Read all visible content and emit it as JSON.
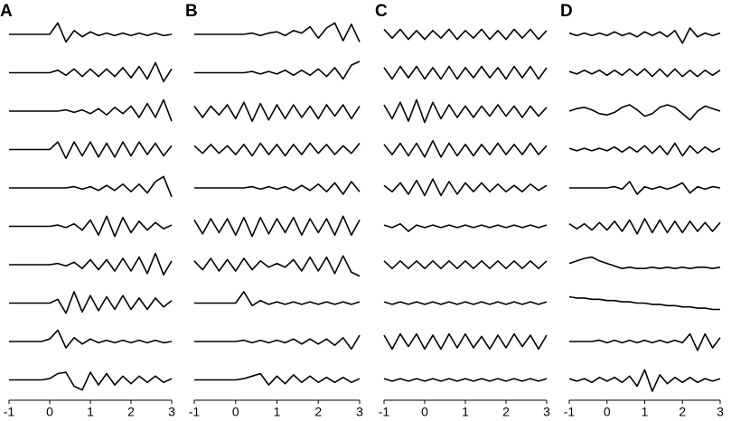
{
  "chart_data": [
    {
      "type": "line",
      "title": "A",
      "x": [
        -1,
        -0.8,
        -0.6,
        -0.4,
        -0.2,
        0,
        0.2,
        0.4,
        0.6,
        0.8,
        1,
        1.2,
        1.4,
        1.6,
        1.8,
        2,
        2.2,
        2.4,
        2.6,
        2.8,
        3
      ],
      "xlim": [
        -1,
        3
      ],
      "xticks": [
        -1,
        0,
        1,
        2,
        3
      ],
      "ylim": [
        -1,
        1
      ],
      "series": [
        {
          "color": "#000000",
          "values": [
            0,
            0,
            0,
            0,
            0,
            0,
            0.9,
            -0.6,
            0.3,
            -0.2,
            0.2,
            -0.1,
            0.1,
            -0.1,
            0.1,
            -0.1,
            0.1,
            -0.1,
            0.1,
            -0.1,
            0
          ]
        },
        {
          "color": "#000000",
          "values": [
            0,
            0,
            0,
            0,
            0,
            0,
            0.2,
            -0.2,
            0.3,
            -0.3,
            0.3,
            -0.3,
            0.3,
            -0.3,
            0.4,
            -0.4,
            0.5,
            -0.5,
            0.8,
            -0.7,
            0.3
          ]
        },
        {
          "color": "#000000",
          "values": [
            0,
            0,
            0,
            0,
            0,
            0,
            0,
            0.1,
            -0.1,
            0.1,
            -0.2,
            0.2,
            -0.3,
            0.3,
            -0.2,
            0.4,
            -0.5,
            0.6,
            -0.5,
            0.9,
            -0.8
          ]
        },
        {
          "color": "#000000",
          "values": [
            0,
            0,
            0,
            0,
            0,
            0,
            0.6,
            -0.7,
            0.6,
            -0.5,
            0.6,
            -0.6,
            0.5,
            -0.6,
            0.6,
            -0.5,
            0.6,
            -0.4,
            0.5,
            -0.5,
            0.3
          ]
        },
        {
          "color": "#000000",
          "values": [
            0,
            0,
            0,
            0,
            0,
            0,
            0,
            0,
            0.1,
            -0.1,
            0.1,
            -0.2,
            0.2,
            -0.2,
            0.3,
            -0.3,
            0.3,
            -0.4,
            0.5,
            0.9,
            -0.7
          ]
        },
        {
          "color": "#000000",
          "values": [
            0,
            0,
            0,
            0,
            0,
            0,
            0.1,
            -0.1,
            0.2,
            -0.3,
            0.5,
            -0.7,
            0.8,
            -0.8,
            0.7,
            -0.5,
            0.4,
            -0.3,
            0.3,
            -0.2,
            0.1
          ]
        },
        {
          "color": "#000000",
          "values": [
            0,
            0,
            0,
            0,
            0,
            0,
            0.1,
            -0.1,
            0.2,
            -0.3,
            0.4,
            -0.4,
            0.4,
            -0.5,
            0.5,
            -0.5,
            0.6,
            -0.7,
            0.9,
            -0.8,
            0.3
          ]
        },
        {
          "color": "#000000",
          "values": [
            0,
            0,
            0,
            0,
            0,
            0,
            0.3,
            -0.8,
            0.9,
            -0.7,
            0.6,
            -0.6,
            0.5,
            -0.5,
            0.6,
            -0.5,
            0.4,
            -0.5,
            0.4,
            -0.3,
            0.2
          ]
        },
        {
          "color": "#000000",
          "values": [
            0,
            0,
            0,
            0,
            0,
            0.2,
            0.9,
            -0.5,
            0.3,
            -0.2,
            0.2,
            -0.1,
            0.1,
            -0.1,
            0.1,
            -0.1,
            0.1,
            -0.1,
            0.1,
            -0.1,
            0
          ]
        },
        {
          "color": "#000000",
          "values": [
            0,
            0,
            0,
            0,
            0,
            0.1,
            0.5,
            0.6,
            -0.5,
            -0.8,
            0.6,
            -0.4,
            0.5,
            -0.4,
            0.3,
            -0.3,
            0.3,
            -0.2,
            0.3,
            -0.2,
            0.1
          ]
        }
      ]
    },
    {
      "type": "line",
      "title": "B",
      "x": [
        -1,
        -0.8,
        -0.6,
        -0.4,
        -0.2,
        0,
        0.2,
        0.4,
        0.6,
        0.8,
        1,
        1.2,
        1.4,
        1.6,
        1.8,
        2,
        2.2,
        2.4,
        2.6,
        2.8,
        3
      ],
      "xlim": [
        -1,
        3
      ],
      "xticks": [
        -1,
        0,
        1,
        2,
        3
      ],
      "ylim": [
        -1,
        1
      ],
      "series": [
        {
          "color": "#000000",
          "values": [
            0,
            0,
            0,
            0,
            0,
            0,
            0,
            0.1,
            -0.1,
            0.1,
            0.2,
            -0.1,
            0.3,
            0.1,
            0.6,
            -0.3,
            0.5,
            0.9,
            -0.5,
            0.8,
            -0.6
          ]
        },
        {
          "color": "#000000",
          "values": [
            0,
            0,
            0,
            0,
            0,
            0,
            0,
            0.1,
            -0.1,
            0.1,
            -0.1,
            0.2,
            -0.2,
            0.2,
            -0.2,
            0.3,
            -0.3,
            0.4,
            -0.5,
            0.6,
            0.9
          ]
        },
        {
          "color": "#000000",
          "values": [
            0.4,
            -0.5,
            0.4,
            -0.3,
            0.5,
            -0.6,
            0.7,
            -0.8,
            0.6,
            -0.7,
            0.5,
            -0.6,
            0.5,
            -0.5,
            0.4,
            -0.6,
            0.5,
            -0.4,
            0.5,
            -0.6,
            0.4
          ]
        },
        {
          "color": "#000000",
          "values": [
            0.3,
            -0.3,
            0.4,
            -0.3,
            0.3,
            -0.4,
            0.4,
            -0.5,
            0.5,
            -0.4,
            0.4,
            -0.5,
            0.4,
            -0.4,
            0.5,
            -0.3,
            0.4,
            -0.4,
            0.3,
            -0.3,
            0.5
          ]
        },
        {
          "color": "#000000",
          "values": [
            0,
            0,
            0,
            0,
            0,
            0,
            0,
            0.1,
            -0.1,
            0.1,
            -0.1,
            0.1,
            -0.2,
            0.2,
            -0.2,
            0.3,
            -0.3,
            0.4,
            -0.5,
            0.5,
            -0.3
          ]
        },
        {
          "color": "#000000",
          "values": [
            0.5,
            -0.6,
            0.6,
            -0.5,
            0.6,
            -0.7,
            0.7,
            -0.8,
            0.7,
            -0.6,
            0.6,
            -0.5,
            0.7,
            -0.7,
            0.6,
            -0.5,
            0.6,
            -0.7,
            0.8,
            -0.7,
            0.5
          ]
        },
        {
          "color": "#000000",
          "values": [
            0.3,
            -0.4,
            0.5,
            -0.5,
            0.4,
            -0.5,
            0.5,
            -0.4,
            0.3,
            -0.2,
            0.1,
            -0.2,
            0.4,
            -0.5,
            0.6,
            -0.5,
            0.6,
            -0.7,
            0.7,
            -0.6,
            -0.9
          ]
        },
        {
          "color": "#000000",
          "values": [
            0,
            0,
            0,
            0,
            0,
            0,
            0.9,
            -0.2,
            0.2,
            -0.1,
            0.1,
            -0.1,
            0.1,
            -0.1,
            0.1,
            -0.1,
            0.1,
            -0.1,
            0.1,
            -0.1,
            0.1
          ]
        },
        {
          "color": "#000000",
          "values": [
            0,
            0,
            0,
            0,
            0,
            0,
            0.1,
            -0.1,
            0.1,
            -0.1,
            0.1,
            -0.1,
            0.2,
            -0.2,
            0.2,
            -0.2,
            0.2,
            -0.3,
            0.3,
            -0.6,
            0.5
          ]
        },
        {
          "color": "#000000",
          "values": [
            0,
            0,
            0,
            0,
            0,
            0,
            0.1,
            0.3,
            0.5,
            -0.4,
            0.3,
            -0.3,
            0.4,
            -0.2,
            0.3,
            -0.2,
            0.2,
            -0.2,
            0.2,
            -0.2,
            0.1
          ]
        }
      ]
    },
    {
      "type": "line",
      "title": "C",
      "x": [
        -1,
        -0.8,
        -0.6,
        -0.4,
        -0.2,
        0,
        0.2,
        0.4,
        0.6,
        0.8,
        1,
        1.2,
        1.4,
        1.6,
        1.8,
        2,
        2.2,
        2.4,
        2.6,
        2.8,
        3
      ],
      "xlim": [
        -1,
        3
      ],
      "xticks": [
        -1,
        0,
        1,
        2,
        3
      ],
      "ylim": [
        -1,
        1
      ],
      "series": [
        {
          "color": "#000000",
          "values": [
            0.4,
            -0.3,
            0.4,
            -0.4,
            0.3,
            -0.4,
            0.3,
            -0.3,
            0.4,
            -0.4,
            0.3,
            -0.3,
            0.4,
            -0.4,
            0.3,
            -0.4,
            0.4,
            -0.3,
            0.4,
            -0.4,
            0.3
          ]
        },
        {
          "color": "#000000",
          "values": [
            0.4,
            -0.5,
            0.5,
            -0.4,
            0.5,
            -0.5,
            0.4,
            -0.5,
            0.5,
            -0.5,
            0.4,
            -0.4,
            0.5,
            -0.4,
            0.4,
            -0.5,
            0.5,
            -0.4,
            0.5,
            -0.5,
            0.4
          ]
        },
        {
          "color": "#000000",
          "values": [
            0.5,
            -0.6,
            0.7,
            -0.8,
            0.9,
            -0.9,
            0.7,
            -0.6,
            0.5,
            -0.5,
            0.4,
            -0.5,
            0.4,
            -0.4,
            0.5,
            -0.4,
            0.4,
            -0.5,
            0.4,
            -0.4,
            0.3
          ]
        },
        {
          "color": "#000000",
          "values": [
            0.4,
            -0.4,
            0.5,
            -0.5,
            0.5,
            -0.6,
            0.7,
            -0.6,
            0.5,
            -0.5,
            0.4,
            -0.5,
            0.4,
            -0.4,
            0.5,
            -0.4,
            0.4,
            -0.4,
            0.5,
            -0.4,
            0.3
          ]
        },
        {
          "color": "#000000",
          "values": [
            0.2,
            -0.3,
            0.4,
            -0.5,
            0.6,
            -0.6,
            0.7,
            -0.6,
            0.5,
            -0.5,
            0.4,
            -0.3,
            0.4,
            -0.3,
            0.3,
            -0.3,
            0.2,
            -0.3,
            0.3,
            -0.2,
            0.2
          ]
        },
        {
          "color": "#000000",
          "values": [
            0.1,
            -0.1,
            0.2,
            -0.4,
            0.1,
            -0.1,
            0.1,
            -0.1,
            0.1,
            -0.1,
            0.1,
            -0.1,
            0.1,
            -0.1,
            0.1,
            -0.1,
            0.1,
            -0.1,
            0.1,
            -0.1,
            0.1
          ]
        },
        {
          "color": "#000000",
          "values": [
            0.3,
            -0.3,
            0.3,
            -0.3,
            0.3,
            -0.3,
            0.3,
            -0.3,
            0.3,
            -0.3,
            0.3,
            -0.3,
            0.3,
            -0.3,
            0.3,
            -0.3,
            0.3,
            -0.3,
            0.3,
            -0.3,
            0.3
          ]
        },
        {
          "color": "#000000",
          "values": [
            0.1,
            -0.1,
            0.1,
            -0.1,
            0.1,
            -0.1,
            0.1,
            -0.1,
            0.1,
            -0.1,
            0.1,
            -0.1,
            0.1,
            -0.1,
            0.1,
            -0.1,
            0.1,
            -0.1,
            0.1,
            -0.1,
            0.1
          ]
        },
        {
          "color": "#000000",
          "values": [
            0.5,
            -0.6,
            0.6,
            -0.4,
            0.6,
            -0.6,
            0.5,
            -0.6,
            0.6,
            -0.5,
            0.6,
            -0.5,
            0.4,
            -0.6,
            0.5,
            -0.5,
            0.6,
            -0.4,
            0.5,
            -0.6,
            0.5
          ]
        },
        {
          "color": "#000000",
          "values": [
            0.1,
            -0.1,
            0.1,
            -0.1,
            0.1,
            -0.1,
            0.1,
            -0.1,
            0.1,
            -0.1,
            0.1,
            -0.1,
            0.1,
            -0.1,
            0.1,
            -0.1,
            0.1,
            -0.1,
            0.1,
            -0.1,
            0.1
          ]
        }
      ]
    },
    {
      "type": "line",
      "title": "D",
      "x": [
        -1,
        -0.8,
        -0.6,
        -0.4,
        -0.2,
        0,
        0.2,
        0.4,
        0.6,
        0.8,
        1,
        1.2,
        1.4,
        1.6,
        1.8,
        2,
        2.2,
        2.4,
        2.6,
        2.8,
        3
      ],
      "xlim": [
        -1,
        3
      ],
      "xticks": [
        -1,
        0,
        1,
        2,
        3
      ],
      "ylim": [
        -1,
        1
      ],
      "series": [
        {
          "color": "#000000",
          "values": [
            0.1,
            -0.1,
            0.1,
            -0.1,
            0.1,
            -0.1,
            0.2,
            -0.1,
            0.1,
            -0.2,
            0.2,
            -0.1,
            0.2,
            -0.2,
            0.3,
            -0.7,
            0.5,
            -0.2,
            0.1,
            -0.1,
            0.1
          ]
        },
        {
          "color": "#000000",
          "values": [
            0.1,
            -0.1,
            0.2,
            -0.1,
            0.2,
            -0.2,
            0.2,
            -0.2,
            0.3,
            -0.2,
            0.3,
            -0.3,
            0.3,
            -0.3,
            0.3,
            -0.3,
            0.2,
            -0.3,
            0.2,
            -0.2,
            0.2
          ]
        },
        {
          "color": "#000000",
          "values": [
            0,
            0.2,
            0.3,
            0.1,
            -0.2,
            -0.3,
            -0.1,
            0.3,
            0.5,
            0.1,
            -0.4,
            -0.2,
            0.3,
            0.5,
            0.3,
            -0.2,
            -0.7,
            0,
            0.4,
            0.2,
            0
          ]
        },
        {
          "color": "#000000",
          "values": [
            0.1,
            -0.1,
            0.1,
            -0.1,
            0.1,
            -0.1,
            0.2,
            -0.2,
            0.2,
            -0.2,
            0.3,
            -0.3,
            0.3,
            -0.4,
            0.5,
            -0.5,
            0.3,
            -0.3,
            0.2,
            -0.2,
            0.1
          ]
        },
        {
          "color": "#000000",
          "values": [
            0,
            0,
            0,
            0,
            0,
            0,
            0.1,
            -0.1,
            0.5,
            -0.5,
            0.1,
            -0.1,
            0.1,
            -0.1,
            0.1,
            0.4,
            -0.4,
            0.1,
            -0.1,
            0.1,
            0
          ]
        },
        {
          "color": "#000000",
          "values": [
            0.2,
            -0.2,
            0.2,
            -0.3,
            0.3,
            -0.3,
            0.4,
            -0.4,
            0.5,
            -0.6,
            0.6,
            -0.5,
            0.5,
            -0.5,
            0.4,
            -0.5,
            0.4,
            -0.4,
            0.3,
            -0.4,
            0.3
          ]
        },
        {
          "color": "#000000",
          "values": [
            0.1,
            0.3,
            0.5,
            0.6,
            0.3,
            0.1,
            -0.1,
            -0.3,
            -0.2,
            -0.3,
            -0.3,
            -0.2,
            -0.3,
            -0.2,
            -0.3,
            -0.2,
            -0.3,
            -0.2,
            -0.2,
            -0.3,
            -0.2
          ]
        },
        {
          "color": "#000000",
          "values": [
            0.5,
            0.4,
            0.4,
            0.3,
            0.3,
            0.2,
            0.2,
            0.1,
            0.1,
            0,
            0,
            -0.1,
            -0.1,
            -0.2,
            -0.2,
            -0.3,
            -0.3,
            -0.4,
            -0.4,
            -0.5,
            -0.5
          ]
        },
        {
          "color": "#000000",
          "values": [
            0,
            0,
            0,
            0,
            0.1,
            -0.1,
            0.1,
            -0.1,
            0.1,
            -0.1,
            0.1,
            -0.1,
            0.1,
            -0.1,
            0.1,
            -0.1,
            0.6,
            -0.7,
            0.6,
            -0.5,
            0.3
          ]
        },
        {
          "color": "#000000",
          "values": [
            0.1,
            -0.1,
            0.1,
            -0.2,
            0.2,
            -0.1,
            0.2,
            -0.2,
            0.3,
            -0.5,
            0.8,
            -0.9,
            0.4,
            -0.3,
            0.2,
            -0.2,
            0.2,
            -0.2,
            0.1,
            -0.1,
            0.1
          ]
        }
      ]
    }
  ]
}
